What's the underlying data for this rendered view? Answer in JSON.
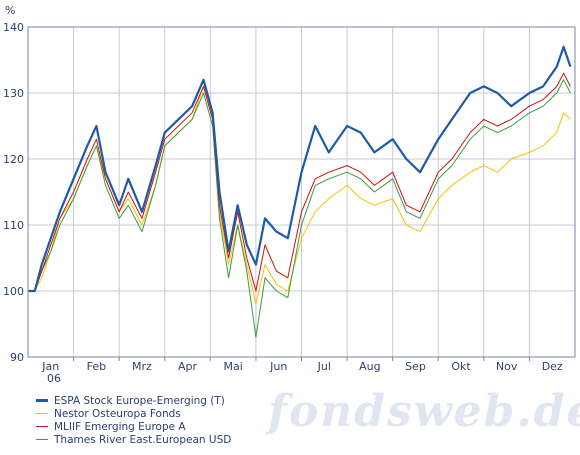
{
  "watermark": "fondsweb.de",
  "chart_data": {
    "type": "line",
    "ylabel": "%",
    "ylim": [
      90,
      140
    ],
    "yticks": [
      90,
      100,
      110,
      120,
      130,
      140
    ],
    "xlim": [
      0,
      12
    ],
    "months": [
      "Jan",
      "Feb",
      "Mrz",
      "Apr",
      "Mai",
      "Jun",
      "Jul",
      "Aug",
      "Sep",
      "Okt",
      "Nov",
      "Dez"
    ],
    "year_label": "06",
    "grid": true,
    "legend_position": "bottom-left",
    "series": [
      {
        "name": "ESPA Stock Europe-Emerging (T)",
        "color": "#1f5aa6",
        "x": [
          0,
          0.15,
          0.3,
          0.5,
          0.7,
          1.0,
          1.3,
          1.5,
          1.7,
          2.0,
          2.2,
          2.5,
          2.8,
          3.0,
          3.3,
          3.6,
          3.85,
          4.05,
          4.2,
          4.4,
          4.6,
          4.8,
          5.0,
          5.2,
          5.45,
          5.7,
          6.0,
          6.3,
          6.6,
          7.0,
          7.3,
          7.6,
          8.0,
          8.3,
          8.6,
          9.0,
          9.3,
          9.7,
          10.0,
          10.3,
          10.6,
          11.0,
          11.3,
          11.6,
          11.75,
          11.9
        ],
        "values": [
          100,
          100,
          104,
          108,
          112,
          117,
          122,
          125,
          118,
          113,
          117,
          112,
          119,
          124,
          126,
          128,
          132,
          127,
          115,
          106,
          113,
          107,
          104,
          111,
          109,
          108,
          118,
          125,
          121,
          125,
          124,
          121,
          123,
          120,
          118,
          123,
          126,
          130,
          131,
          130,
          128,
          130,
          131,
          134,
          137,
          134
        ]
      },
      {
        "name": "Nestor Osteuropa Fonds",
        "color": "#f2c300",
        "x": [
          0,
          0.15,
          0.3,
          0.5,
          0.7,
          1.0,
          1.3,
          1.5,
          1.7,
          2.0,
          2.2,
          2.5,
          2.8,
          3.0,
          3.3,
          3.6,
          3.85,
          4.05,
          4.2,
          4.4,
          4.6,
          4.8,
          5.0,
          5.2,
          5.45,
          5.7,
          6.0,
          6.3,
          6.6,
          7.0,
          7.3,
          7.6,
          8.0,
          8.3,
          8.6,
          9.0,
          9.3,
          9.7,
          10.0,
          10.3,
          10.6,
          11.0,
          11.3,
          11.6,
          11.75,
          11.9
        ],
        "values": [
          100,
          100,
          102,
          106,
          111,
          114,
          119,
          122,
          117,
          112,
          114,
          110,
          116,
          122,
          124,
          126,
          131,
          126,
          112,
          104,
          110,
          104,
          98,
          104,
          101,
          100,
          108,
          112,
          114,
          116,
          114,
          113,
          114,
          110,
          109,
          114,
          116,
          118,
          119,
          118,
          120,
          121,
          122,
          124,
          127,
          126
        ]
      },
      {
        "name": "MLIIF Emerging Europe A",
        "color": "#cc1111",
        "x": [
          0,
          0.15,
          0.3,
          0.5,
          0.7,
          1.0,
          1.3,
          1.5,
          1.7,
          2.0,
          2.2,
          2.5,
          2.8,
          3.0,
          3.3,
          3.6,
          3.85,
          4.05,
          4.2,
          4.4,
          4.6,
          4.8,
          5.0,
          5.2,
          5.45,
          5.7,
          6.0,
          6.3,
          6.6,
          7.0,
          7.3,
          7.6,
          8.0,
          8.3,
          8.6,
          9.0,
          9.3,
          9.7,
          10.0,
          10.3,
          10.6,
          11.0,
          11.3,
          11.6,
          11.75,
          11.9
        ],
        "values": [
          100,
          100,
          103,
          107,
          111,
          115,
          120,
          123,
          117,
          112,
          115,
          111,
          118,
          123,
          125,
          127,
          131,
          126,
          113,
          105,
          112,
          105,
          100,
          107,
          103,
          102,
          112,
          117,
          118,
          119,
          118,
          116,
          118,
          113,
          112,
          118,
          120,
          124,
          126,
          125,
          126,
          128,
          129,
          131,
          133,
          131
        ]
      },
      {
        "name": "Thames River East.European USD",
        "color": "#3d9a3d",
        "x": [
          0,
          0.15,
          0.3,
          0.5,
          0.7,
          1.0,
          1.3,
          1.5,
          1.7,
          2.0,
          2.2,
          2.5,
          2.8,
          3.0,
          3.3,
          3.6,
          3.85,
          4.05,
          4.2,
          4.4,
          4.6,
          4.8,
          5.0,
          5.2,
          5.45,
          5.7,
          6.0,
          6.3,
          6.6,
          7.0,
          7.3,
          7.6,
          8.0,
          8.3,
          8.6,
          9.0,
          9.3,
          9.7,
          10.0,
          10.3,
          10.6,
          11.0,
          11.3,
          11.6,
          11.75,
          11.9
        ],
        "values": [
          100,
          100,
          103,
          106,
          110,
          114,
          119,
          122,
          116,
          111,
          113,
          109,
          116,
          122,
          124,
          126,
          130,
          125,
          111,
          102,
          110,
          103,
          93,
          102,
          100,
          99,
          110,
          116,
          117,
          118,
          117,
          115,
          117,
          112,
          111,
          117,
          119,
          123,
          125,
          124,
          125,
          127,
          128,
          130,
          132,
          130
        ]
      }
    ]
  }
}
